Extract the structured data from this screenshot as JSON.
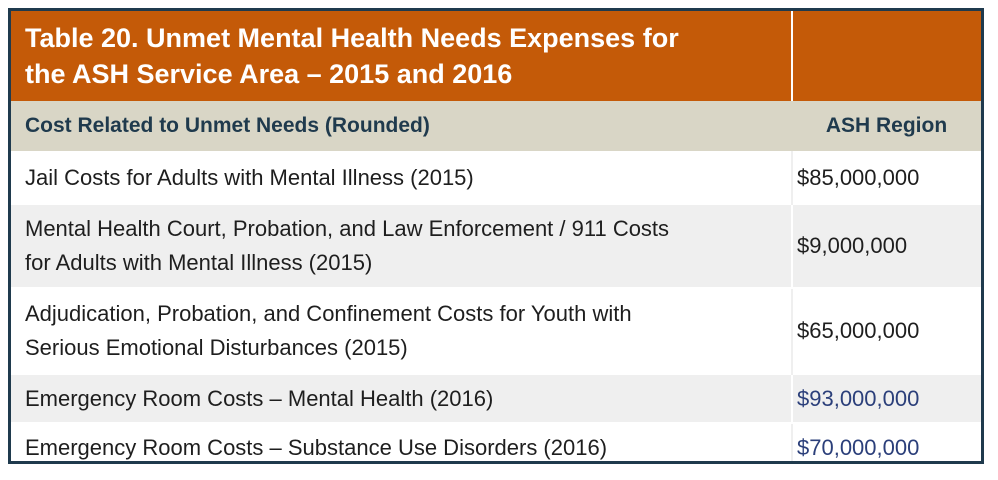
{
  "table": {
    "title_line1": "Table 20. Unmet Mental Health Needs Expenses for",
    "title_line2": "the ASH Service Area – 2015 and 2016",
    "headers": {
      "col1": "Cost Related to Unmet Needs (Rounded)",
      "col2": "ASH Region"
    },
    "rows": [
      {
        "label_line1": "Jail Costs for Adults with Mental Illness (2015)",
        "label_line2": "",
        "value": "$85,000,000"
      },
      {
        "label_line1": "Mental Health Court, Probation, and Law Enforcement / 911 Costs",
        "label_line2": "for Adults with Mental Illness (2015)",
        "value": "$9,000,000"
      },
      {
        "label_line1": "Adjudication, Probation, and Confinement Costs for Youth with",
        "label_line2": "Serious Emotional Disturbances (2015)",
        "value": "$65,000,000"
      },
      {
        "label_line1": "Emergency Room Costs – Mental Health (2016)",
        "label_line2": "",
        "value": "$93,000,000"
      },
      {
        "label_line1": "Emergency Room Costs – Substance Use Disorders (2016)",
        "label_line2": "",
        "value": "$70,000,000"
      }
    ],
    "colors": {
      "title_bg": "#c45a08",
      "header_bg": "#d9d6c6",
      "header_text": "#1f3a4d",
      "border": "#1f3a4d",
      "alt_row_bg": "#efefef",
      "blue_value_text": "#2b3f7a"
    }
  }
}
